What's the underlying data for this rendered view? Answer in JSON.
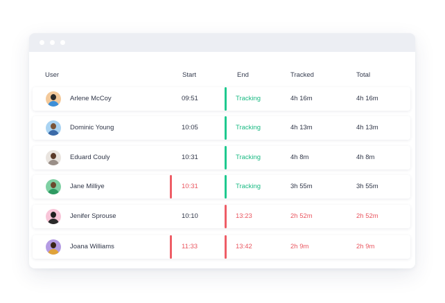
{
  "window": {
    "dots": [
      "",
      "",
      ""
    ]
  },
  "columns": {
    "user": "User",
    "start": "Start",
    "end": "End",
    "tracked": "Tracked",
    "total": "Total"
  },
  "colors": {
    "green": "#1ec98e",
    "red": "#ee5d66"
  },
  "rows": [
    {
      "name": "Arlene McCoy",
      "start": "09:51",
      "end": "Tracking",
      "tracked": "4h 16m",
      "total": "4h 16m",
      "start_flag": "none",
      "end_flag": "green",
      "avatar_bg": "#f3c99a",
      "avatar_hair": "#2b2b2b",
      "avatar_shirt": "#3d8fd8"
    },
    {
      "name": "Dominic Young",
      "start": "10:05",
      "end": "Tracking",
      "tracked": "4h 13m",
      "total": "4h 13m",
      "start_flag": "none",
      "end_flag": "green",
      "avatar_bg": "#a9d3f2",
      "avatar_hair": "#7a5438",
      "avatar_shirt": "#3b6aa8"
    },
    {
      "name": "Eduard Couly",
      "start": "10:31",
      "end": "Tracking",
      "tracked": "4h 8m",
      "total": "4h 8m",
      "start_flag": "none",
      "end_flag": "green",
      "avatar_bg": "#e9e4df",
      "avatar_hair": "#5b3b2a",
      "avatar_shirt": "#9a8f88"
    },
    {
      "name": "Jane Milliye",
      "start": "10:31",
      "end": "Tracking",
      "tracked": "3h 55m",
      "total": "3h 55m",
      "start_flag": "red",
      "end_flag": "green",
      "avatar_bg": "#7fd0a3",
      "avatar_hair": "#6b4a2e",
      "avatar_shirt": "#2e9a62"
    },
    {
      "name": "Jenifer Sprouse",
      "start": "10:10",
      "end": "13:23",
      "tracked": "2h 52m",
      "total": "2h 52m",
      "start_flag": "none",
      "end_flag": "red",
      "avatar_bg": "#f8c5d8",
      "avatar_hair": "#1f1f1f",
      "avatar_shirt": "#2a2a2a"
    },
    {
      "name": "Joana Williams",
      "start": "11:33",
      "end": "13:42",
      "tracked": "2h 9m",
      "total": "2h 9m",
      "start_flag": "red",
      "end_flag": "red",
      "avatar_bg": "#b49be3",
      "avatar_hair": "#3a2418",
      "avatar_shirt": "#e0a33a"
    }
  ]
}
